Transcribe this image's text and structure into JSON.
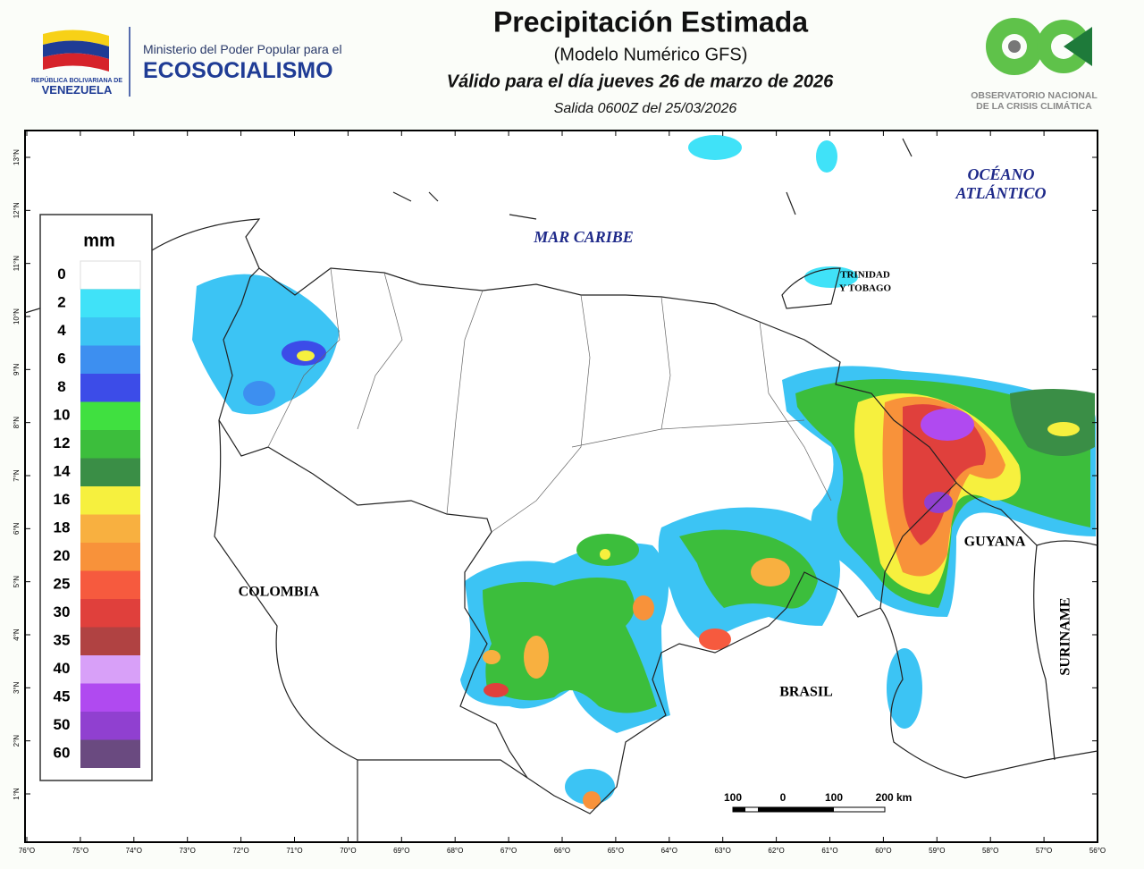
{
  "header": {
    "title": "Precipitación Estimada",
    "subtitle": "(Modelo Numérico GFS)",
    "valid": "Válido para el día jueves 26 de marzo de 2026",
    "run": "Salida 0600Z del 25/03/2026"
  },
  "logos": {
    "republic": "REPÚBLICA BOLIVARIANA DE",
    "country": "VENEZUELA",
    "ministry": "Ministerio del Poder Popular para el",
    "ministry_name": "ECOSOCIALISMO",
    "observatory_1": "OBSERVATORIO NACIONAL",
    "observatory_2": "DE LA CRISIS CLIMÁTICA"
  },
  "legend": {
    "unit": "mm",
    "items": [
      {
        "value": 0,
        "color": "#ffffff"
      },
      {
        "value": 2,
        "color": "#40e2f8"
      },
      {
        "value": 4,
        "color": "#3cc4f4"
      },
      {
        "value": 6,
        "color": "#3d8ff0"
      },
      {
        "value": 8,
        "color": "#3c4ce8"
      },
      {
        "value": 10,
        "color": "#40e040"
      },
      {
        "value": 12,
        "color": "#3cbe3c"
      },
      {
        "value": 14,
        "color": "#3a8e46"
      },
      {
        "value": 16,
        "color": "#f6f03e"
      },
      {
        "value": 18,
        "color": "#f8b040"
      },
      {
        "value": 20,
        "color": "#f8923a"
      },
      {
        "value": 25,
        "color": "#f65a3e"
      },
      {
        "value": 30,
        "color": "#e0403c"
      },
      {
        "value": 35,
        "color": "#b04242"
      },
      {
        "value": 40,
        "color": "#d8a0f8"
      },
      {
        "value": 45,
        "color": "#b04af0"
      },
      {
        "value": 50,
        "color": "#9040d0"
      },
      {
        "value": 60,
        "color": "#6a4a80"
      }
    ]
  },
  "map": {
    "labels": {
      "sea": "MAR CARIBE",
      "ocean_1": "OCÉANO",
      "ocean_2": "ATLÁNTICO",
      "tt_1": "TRINIDAD",
      "tt_2": "Y TOBAGO",
      "colombia": "COLOMBIA",
      "brasil": "BRASIL",
      "guyana": "GUYANA",
      "suriname": "SURINAME"
    },
    "lon_labels": [
      "76°O",
      "75°O",
      "74°O",
      "73°O",
      "72°O",
      "71°O",
      "70°O",
      "69°O",
      "68°O",
      "67°O",
      "66°O",
      "65°O",
      "64°O",
      "63°O",
      "62°O",
      "61°O",
      "60°O",
      "59°O",
      "58°O",
      "57°O",
      "56°O"
    ],
    "lat_labels": [
      "13°N",
      "12°N",
      "11°N",
      "10°N",
      "9°N",
      "8°N",
      "7°N",
      "6°N",
      "5°N",
      "4°N",
      "3°N",
      "2°N",
      "1°N"
    ],
    "scale": [
      "100",
      "0",
      "100",
      "200 km"
    ]
  }
}
